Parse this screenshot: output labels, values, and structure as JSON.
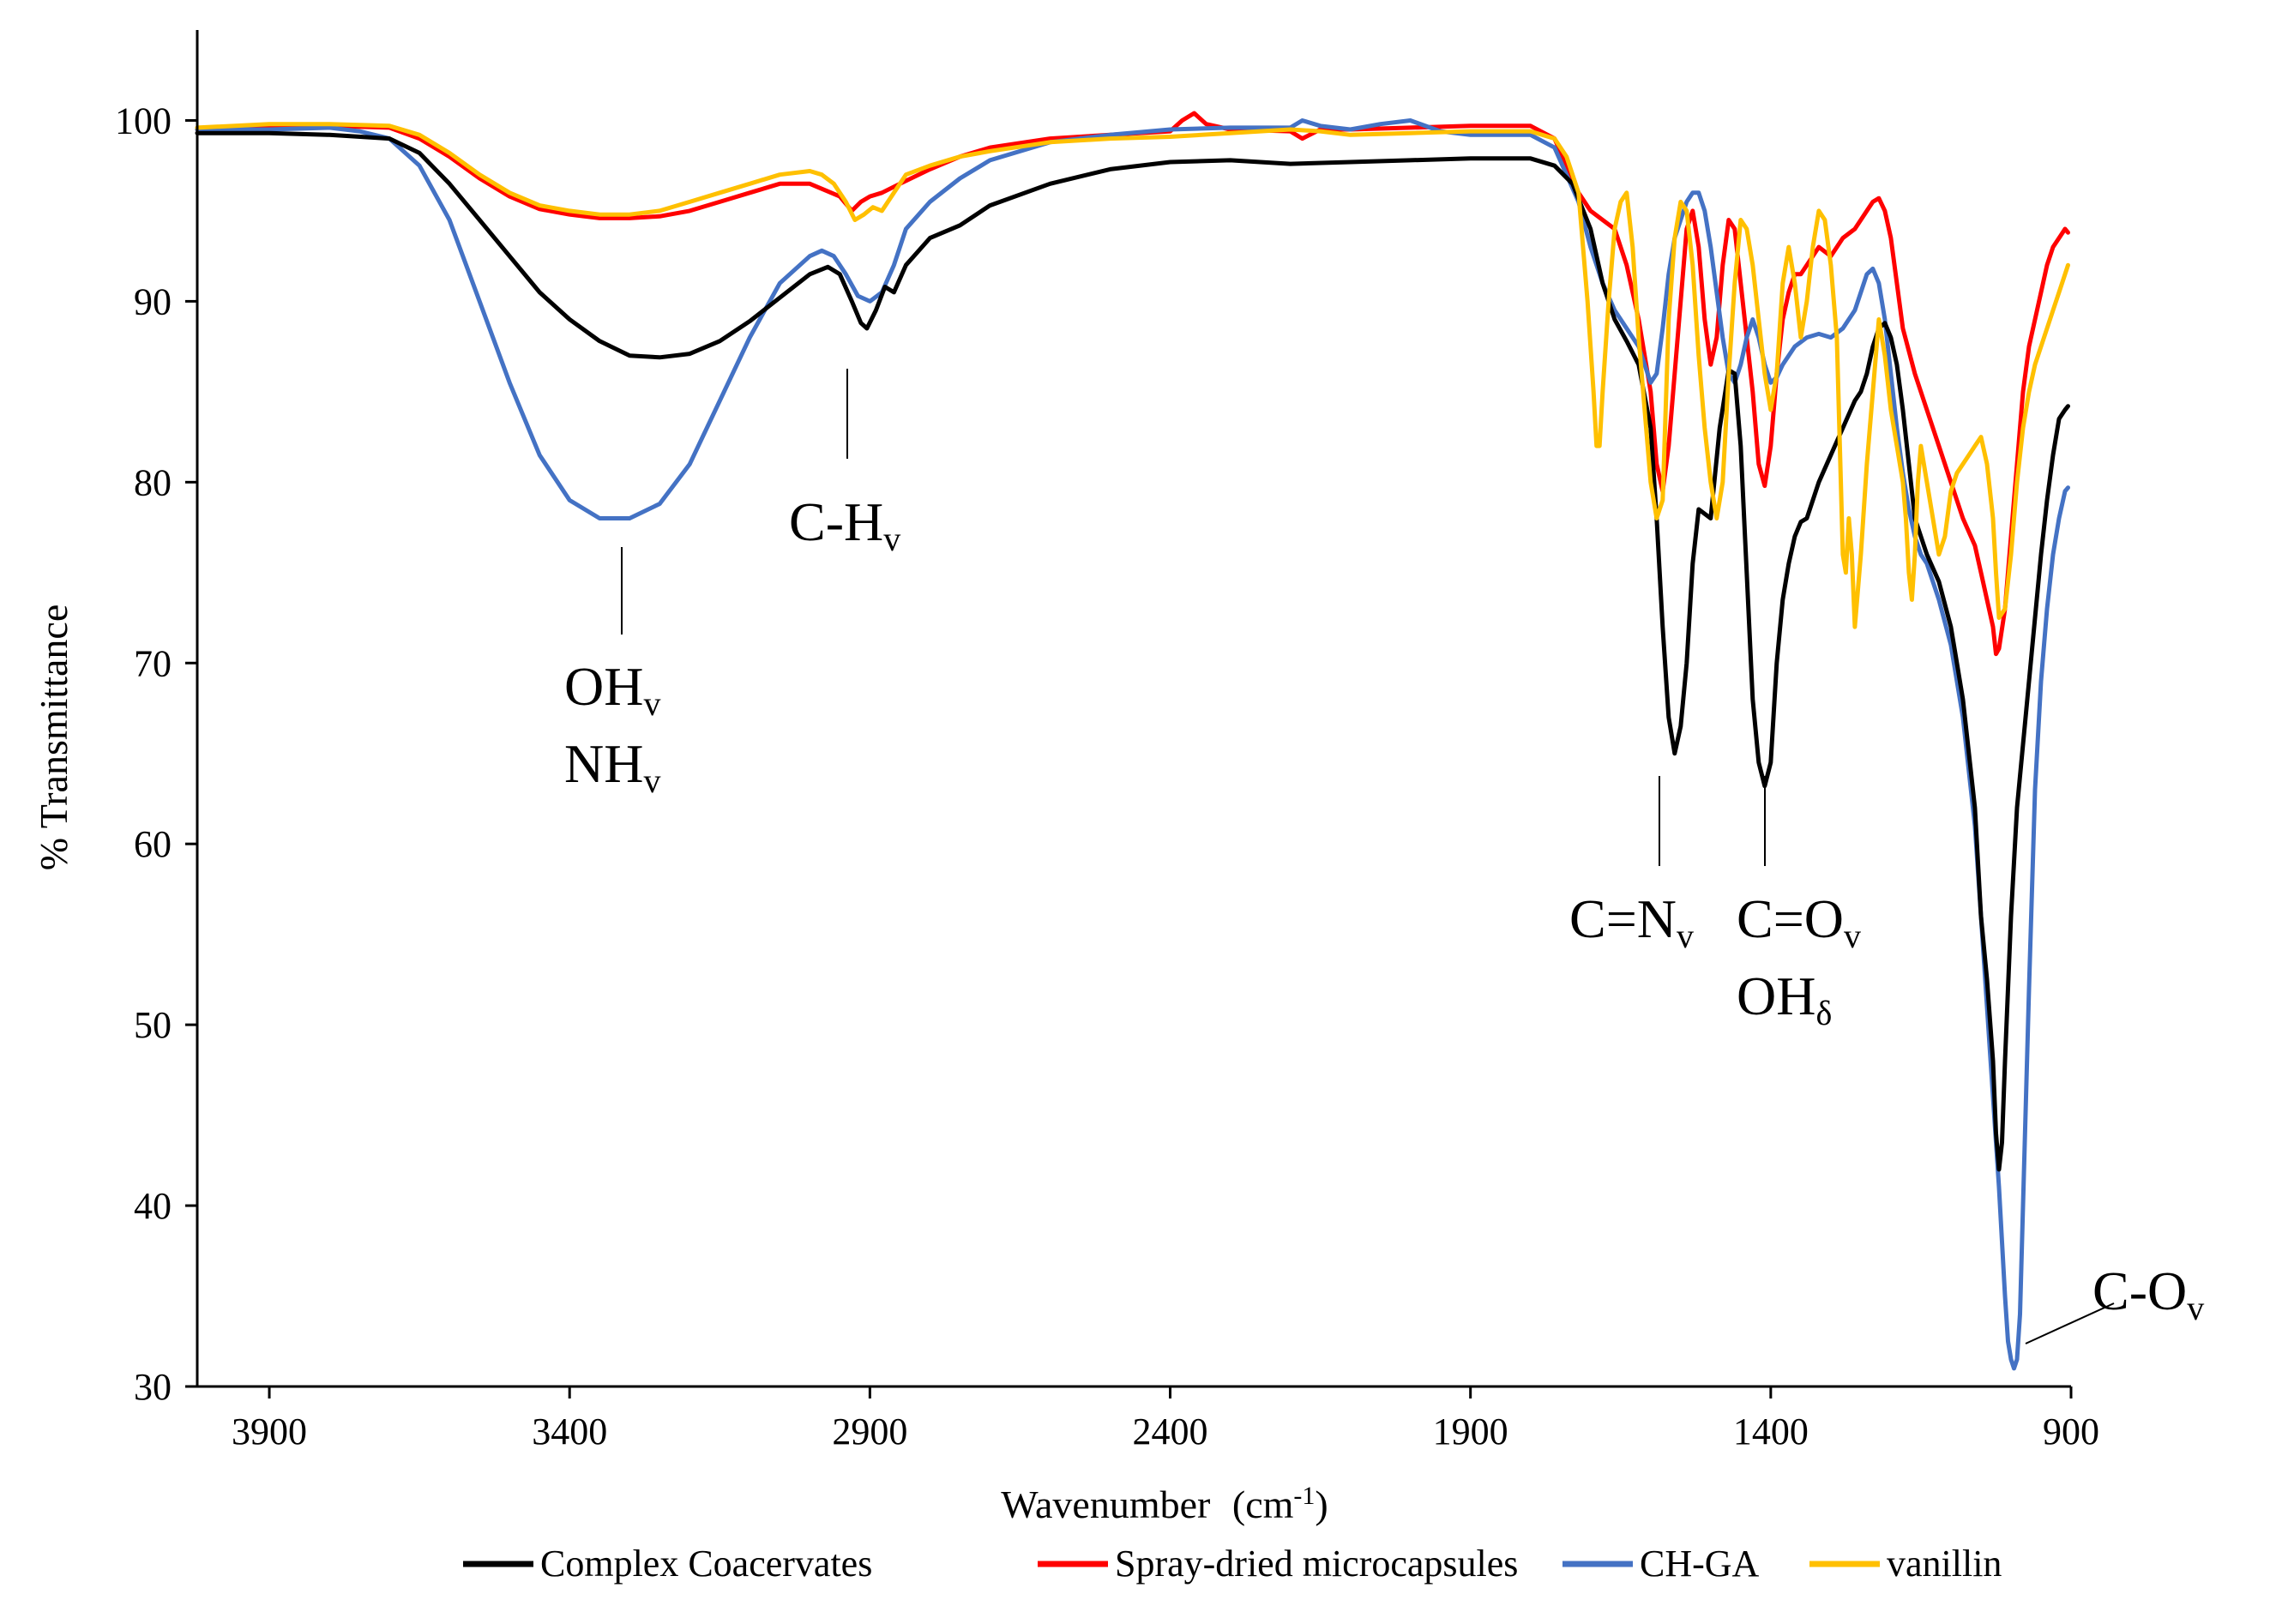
{
  "chart_data": {
    "type": "line",
    "title": "",
    "xlabel": "Wavenumber",
    "xlabel_unit": "(cm",
    "xlabel_unit_sup": "-1",
    "xlabel_unit_close": ")",
    "ylabel": "% Transmittance",
    "xlim": [
      4020,
      900
    ],
    "ylim": [
      30,
      105
    ],
    "x_ticks": [
      3900,
      3400,
      2900,
      2400,
      1900,
      1400,
      900
    ],
    "y_ticks": [
      30,
      40,
      50,
      60,
      70,
      80,
      90,
      100
    ],
    "grid": false,
    "legend_position": "bottom",
    "series": [
      {
        "name": "Complex Coacervates",
        "color": "#000000",
        "x": [
          4020,
          3900,
          3800,
          3700,
          3650,
          3600,
          3550,
          3500,
          3450,
          3400,
          3350,
          3300,
          3250,
          3200,
          3150,
          3100,
          3050,
          3000,
          2970,
          2950,
          2930,
          2915,
          2905,
          2890,
          2875,
          2860,
          2840,
          2800,
          2750,
          2700,
          2600,
          2500,
          2400,
          2300,
          2200,
          2100,
          2000,
          1900,
          1800,
          1760,
          1730,
          1700,
          1680,
          1660,
          1640,
          1620,
          1600,
          1590,
          1580,
          1570,
          1560,
          1550,
          1540,
          1530,
          1520,
          1500,
          1485,
          1470,
          1460,
          1450,
          1440,
          1430,
          1420,
          1410,
          1400,
          1390,
          1380,
          1370,
          1360,
          1350,
          1340,
          1320,
          1300,
          1280,
          1260,
          1250,
          1240,
          1230,
          1220,
          1210,
          1200,
          1190,
          1180,
          1170,
          1160,
          1140,
          1120,
          1100,
          1080,
          1060,
          1050,
          1040,
          1030,
          1025,
          1020,
          1015,
          1010,
          1000,
          990,
          980,
          970,
          960,
          950,
          940,
          930,
          920,
          910,
          905
        ],
        "y": [
          99.3,
          99.3,
          99.2,
          99.0,
          98.2,
          96.5,
          94.5,
          92.5,
          90.5,
          89.0,
          87.8,
          87.0,
          86.9,
          87.1,
          87.8,
          88.9,
          90.2,
          91.5,
          91.9,
          91.5,
          90.0,
          88.8,
          88.5,
          89.5,
          90.8,
          90.5,
          92.0,
          93.5,
          94.2,
          95.3,
          96.5,
          97.3,
          97.7,
          97.8,
          97.6,
          97.7,
          97.8,
          97.9,
          97.9,
          97.5,
          96.5,
          94.0,
          91.0,
          89.0,
          87.8,
          86.5,
          83.0,
          78.0,
          72.0,
          67.0,
          65.0,
          66.5,
          70.0,
          75.5,
          78.5,
          78.0,
          83.0,
          86.2,
          86.0,
          82.0,
          75.0,
          68.0,
          64.5,
          63.2,
          64.5,
          70.0,
          73.5,
          75.5,
          77.0,
          77.8,
          78.0,
          80.0,
          81.5,
          83.0,
          84.5,
          85.0,
          86.0,
          87.5,
          88.5,
          88.8,
          88.0,
          86.5,
          84.0,
          81.0,
          78.0,
          76.0,
          74.5,
          72.0,
          68.0,
          62.0,
          56.0,
          52.5,
          48.0,
          44.0,
          42.0,
          43.5,
          48.0,
          56.0,
          62.0,
          65.5,
          69.0,
          72.5,
          76.0,
          79.0,
          81.5,
          83.5,
          84.0,
          84.2
        ]
      },
      {
        "name": "Spray-dried microcapsules",
        "color": "#ff0000",
        "x": [
          4020,
          3900,
          3800,
          3700,
          3650,
          3600,
          3550,
          3500,
          3450,
          3400,
          3350,
          3300,
          3250,
          3200,
          3150,
          3100,
          3050,
          3000,
          2950,
          2930,
          2915,
          2900,
          2880,
          2850,
          2800,
          2750,
          2700,
          2600,
          2500,
          2400,
          2380,
          2360,
          2340,
          2300,
          2200,
          2180,
          2150,
          2100,
          2000,
          1900,
          1800,
          1760,
          1740,
          1720,
          1700,
          1680,
          1660,
          1640,
          1620,
          1600,
          1590,
          1580,
          1570,
          1560,
          1550,
          1540,
          1530,
          1520,
          1510,
          1500,
          1490,
          1480,
          1470,
          1460,
          1450,
          1440,
          1430,
          1420,
          1410,
          1400,
          1390,
          1380,
          1370,
          1360,
          1350,
          1340,
          1330,
          1320,
          1300,
          1280,
          1260,
          1240,
          1230,
          1220,
          1210,
          1200,
          1190,
          1180,
          1160,
          1140,
          1120,
          1100,
          1080,
          1060,
          1050,
          1040,
          1030,
          1025,
          1020,
          1010,
          1000,
          990,
          980,
          970,
          960,
          950,
          940,
          930,
          920,
          910,
          905
        ],
        "y": [
          99.5,
          99.6,
          99.7,
          99.6,
          99.0,
          98.0,
          96.8,
          95.8,
          95.1,
          94.8,
          94.6,
          94.6,
          94.7,
          95.0,
          95.5,
          96.0,
          96.5,
          96.5,
          95.8,
          95.0,
          95.5,
          95.8,
          96.0,
          96.5,
          97.3,
          98.0,
          98.5,
          99.0,
          99.2,
          99.4,
          100.0,
          100.4,
          99.8,
          99.5,
          99.4,
          99.0,
          99.5,
          99.5,
          99.6,
          99.7,
          99.7,
          99.0,
          97.5,
          96.0,
          95.0,
          94.5,
          94.0,
          92.0,
          89.0,
          85.0,
          81.0,
          79.5,
          82.0,
          86.0,
          90.0,
          94.0,
          95.0,
          93.0,
          89.0,
          86.5,
          88.0,
          92.0,
          94.5,
          94.0,
          91.0,
          88.0,
          85.0,
          81.0,
          79.8,
          82.0,
          86.0,
          89.0,
          90.5,
          91.5,
          91.5,
          92.0,
          92.5,
          93.0,
          92.5,
          93.5,
          94.0,
          95.0,
          95.5,
          95.7,
          95.0,
          93.5,
          91.0,
          88.5,
          86.0,
          84.0,
          82.0,
          80.0,
          78.0,
          76.5,
          75.0,
          73.5,
          72.0,
          70.5,
          70.8,
          73.0,
          77.0,
          81.0,
          85.0,
          87.5,
          89.0,
          90.5,
          92.0,
          93.0,
          93.5,
          94.0,
          93.8
        ]
      },
      {
        "name": "CH-GA",
        "color": "#4472c4",
        "x": [
          4020,
          3900,
          3800,
          3750,
          3700,
          3650,
          3600,
          3550,
          3500,
          3450,
          3400,
          3350,
          3300,
          3250,
          3200,
          3150,
          3100,
          3050,
          3000,
          2980,
          2960,
          2940,
          2920,
          2900,
          2880,
          2860,
          2840,
          2800,
          2750,
          2700,
          2600,
          2500,
          2400,
          2300,
          2200,
          2180,
          2150,
          2100,
          2050,
          2000,
          1950,
          1900,
          1800,
          1760,
          1740,
          1720,
          1700,
          1680,
          1660,
          1640,
          1620,
          1610,
          1600,
          1590,
          1580,
          1570,
          1560,
          1550,
          1540,
          1530,
          1520,
          1510,
          1500,
          1490,
          1480,
          1470,
          1460,
          1450,
          1440,
          1430,
          1420,
          1410,
          1400,
          1390,
          1380,
          1370,
          1360,
          1340,
          1320,
          1300,
          1280,
          1260,
          1250,
          1240,
          1230,
          1220,
          1210,
          1200,
          1190,
          1180,
          1170,
          1160,
          1150,
          1140,
          1130,
          1120,
          1100,
          1080,
          1060,
          1050,
          1040,
          1030,
          1020,
          1015,
          1010,
          1005,
          1000,
          995,
          990,
          985,
          980,
          970,
          960,
          950,
          940,
          930,
          920,
          910,
          905
        ],
        "y": [
          99.5,
          99.5,
          99.6,
          99.4,
          99.0,
          97.5,
          94.5,
          90.0,
          85.5,
          81.5,
          79.0,
          78.0,
          78.0,
          78.8,
          81.0,
          84.5,
          88.0,
          91.0,
          92.5,
          92.8,
          92.5,
          91.5,
          90.3,
          90.0,
          90.5,
          92.0,
          94.0,
          95.5,
          96.8,
          97.8,
          98.8,
          99.2,
          99.5,
          99.6,
          99.6,
          100.0,
          99.7,
          99.5,
          99.8,
          100.0,
          99.4,
          99.2,
          99.2,
          98.5,
          97.0,
          95.5,
          93.0,
          91.0,
          89.5,
          88.5,
          87.5,
          86.5,
          85.5,
          86.0,
          88.5,
          91.5,
          93.5,
          94.5,
          95.5,
          96.0,
          96.0,
          95.0,
          93.0,
          90.5,
          88.0,
          86.0,
          85.5,
          86.5,
          88.0,
          89.0,
          88.0,
          86.5,
          85.5,
          85.8,
          86.5,
          87.0,
          87.5,
          88.0,
          88.2,
          88.0,
          88.5,
          89.5,
          90.5,
          91.5,
          91.8,
          91.0,
          89.0,
          86.0,
          83.0,
          80.5,
          78.5,
          77.0,
          76.0,
          75.5,
          74.5,
          73.5,
          71.0,
          67.0,
          61.0,
          56.0,
          51.0,
          46.0,
          41.0,
          38.0,
          35.0,
          32.5,
          31.5,
          31.0,
          31.5,
          34.0,
          40.0,
          52.0,
          63.0,
          69.0,
          73.0,
          76.0,
          78.0,
          79.5,
          79.7
        ]
      },
      {
        "name": "vanillin",
        "color": "#ffc000",
        "x": [
          4020,
          3900,
          3800,
          3700,
          3650,
          3600,
          3550,
          3500,
          3450,
          3400,
          3350,
          3300,
          3250,
          3200,
          3150,
          3100,
          3050,
          3000,
          2980,
          2960,
          2940,
          2925,
          2910,
          2895,
          2880,
          2860,
          2840,
          2800,
          2750,
          2700,
          2600,
          2500,
          2400,
          2300,
          2200,
          2150,
          2100,
          2000,
          1900,
          1800,
          1760,
          1740,
          1720,
          1705,
          1695,
          1690,
          1685,
          1680,
          1670,
          1660,
          1650,
          1640,
          1630,
          1620,
          1610,
          1600,
          1590,
          1580,
          1575,
          1570,
          1560,
          1550,
          1540,
          1530,
          1520,
          1510,
          1500,
          1490,
          1480,
          1470,
          1460,
          1450,
          1440,
          1430,
          1420,
          1410,
          1400,
          1390,
          1380,
          1370,
          1360,
          1350,
          1340,
          1330,
          1320,
          1310,
          1300,
          1290,
          1285,
          1280,
          1275,
          1270,
          1265,
          1260,
          1250,
          1240,
          1230,
          1220,
          1210,
          1200,
          1190,
          1180,
          1175,
          1170,
          1165,
          1160,
          1155,
          1150,
          1140,
          1130,
          1120,
          1110,
          1100,
          1090,
          1080,
          1070,
          1060,
          1050,
          1040,
          1030,
          1025,
          1020,
          1010,
          1000,
          990,
          980,
          970,
          960,
          950,
          940,
          930,
          920,
          910,
          905
        ],
        "y": [
          99.6,
          99.8,
          99.8,
          99.7,
          99.2,
          98.2,
          97.0,
          96.0,
          95.3,
          95.0,
          94.8,
          94.8,
          95.0,
          95.5,
          96.0,
          96.5,
          97.0,
          97.2,
          97.0,
          96.5,
          95.5,
          94.5,
          94.8,
          95.2,
          95.0,
          96.0,
          97.0,
          97.5,
          98.0,
          98.3,
          98.8,
          99.0,
          99.1,
          99.3,
          99.5,
          99.4,
          99.2,
          99.3,
          99.4,
          99.4,
          99.0,
          98.0,
          96.0,
          90.0,
          85.0,
          82.0,
          82.0,
          85.0,
          90.0,
          94.0,
          95.5,
          96.0,
          93.0,
          88.0,
          84.0,
          80.0,
          78.0,
          79.0,
          84.0,
          89.0,
          93.5,
          95.5,
          95.0,
          92.0,
          87.0,
          83.0,
          80.0,
          78.0,
          80.0,
          86.0,
          91.0,
          94.5,
          94.0,
          92.0,
          89.0,
          86.0,
          84.0,
          86.0,
          91.0,
          93.0,
          91.0,
          88.0,
          90.0,
          93.0,
          95.0,
          94.5,
          92.0,
          88.0,
          82.0,
          76.0,
          75.0,
          78.0,
          76.0,
          72.0,
          76.0,
          81.0,
          85.0,
          89.0,
          87.0,
          84.0,
          82.0,
          80.0,
          78.0,
          75.0,
          73.5,
          76.0,
          80.0,
          82.0,
          80.0,
          78.0,
          76.0,
          77.0,
          79.5,
          80.5,
          81.0,
          81.5,
          82.0,
          82.5,
          81.0,
          78.0,
          75.0,
          72.5,
          73.0,
          76.0,
          80.0,
          83.0,
          85.0,
          86.5,
          87.5,
          88.5,
          89.5,
          90.5,
          91.5,
          92.0
        ]
      }
    ],
    "annotations": [
      {
        "id": "ch",
        "base": "C-H",
        "sub": "v"
      },
      {
        "id": "oh",
        "base": "OH",
        "sub": "v"
      },
      {
        "id": "nh",
        "base": "NH",
        "sub": "v"
      },
      {
        "id": "cn",
        "base": "C=N",
        "sub": "v"
      },
      {
        "id": "co",
        "base": "C=O",
        "sub": "v"
      },
      {
        "id": "ohd",
        "base": "OH",
        "sub": "δ"
      },
      {
        "id": "c-o",
        "base": "C-O",
        "sub": "v"
      }
    ]
  }
}
